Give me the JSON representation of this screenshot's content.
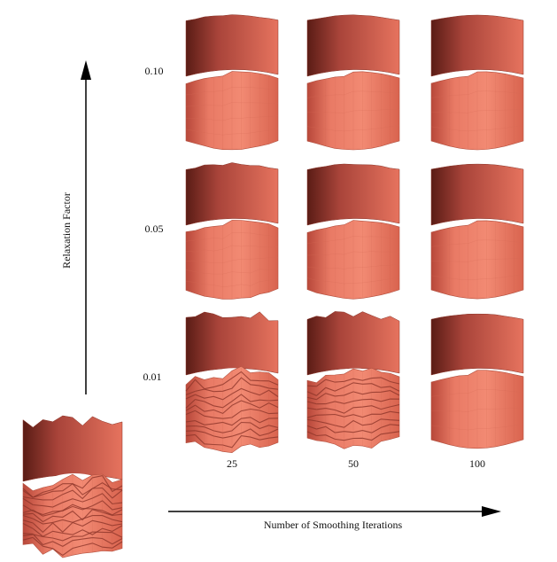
{
  "figure": {
    "y_axis_label": "Relaxation Factor",
    "x_axis_label": "Number of Smoothing Iterations",
    "row_labels": [
      "0.10",
      "0.05",
      "0.01"
    ],
    "col_labels": [
      "25",
      "50",
      "100"
    ],
    "colors": {
      "surface_light": "#f0806c",
      "surface_mid": "#e06a55",
      "surface_dark": "#7a2a20",
      "axis": "#000000"
    },
    "original_mesh": {
      "roughness": 1.0
    },
    "grid": [
      {
        "relaxation": "0.10",
        "iterations": "25",
        "roughness": 0.08
      },
      {
        "relaxation": "0.10",
        "iterations": "50",
        "roughness": 0.04
      },
      {
        "relaxation": "0.10",
        "iterations": "100",
        "roughness": 0.0
      },
      {
        "relaxation": "0.05",
        "iterations": "25",
        "roughness": 0.22
      },
      {
        "relaxation": "0.05",
        "iterations": "50",
        "roughness": 0.08
      },
      {
        "relaxation": "0.05",
        "iterations": "100",
        "roughness": 0.02
      },
      {
        "relaxation": "0.01",
        "iterations": "25",
        "roughness": 0.7
      },
      {
        "relaxation": "0.01",
        "iterations": "50",
        "roughness": 0.6
      },
      {
        "relaxation": "0.01",
        "iterations": "100",
        "roughness": 0.04
      }
    ]
  }
}
